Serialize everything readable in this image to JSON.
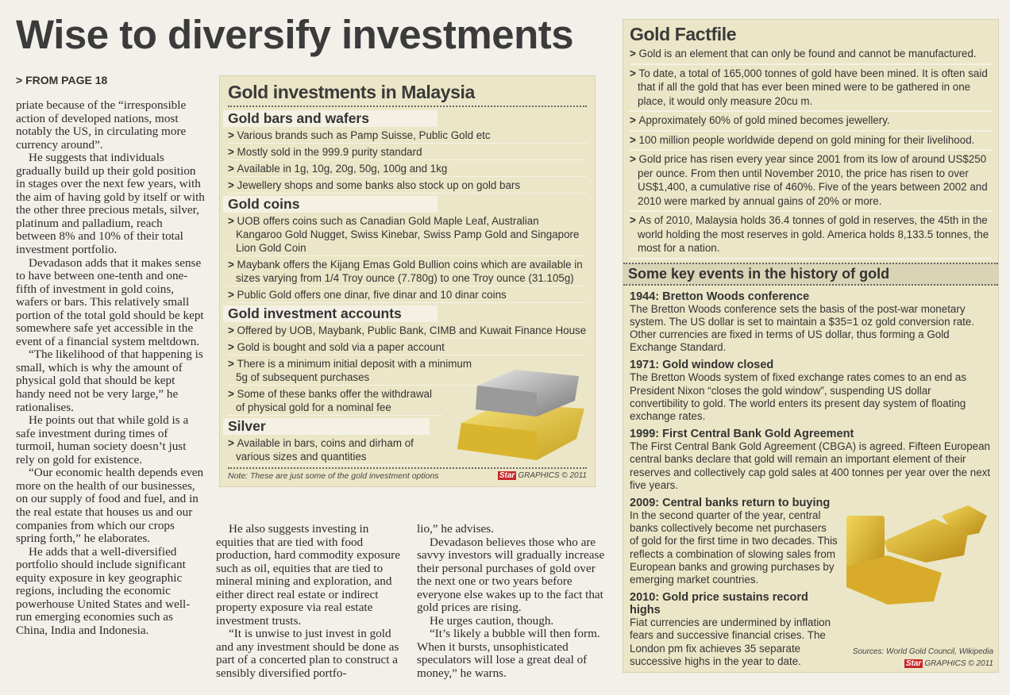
{
  "headline": "Wise to diversify investments",
  "jump": "> FROM PAGE 18",
  "article": {
    "left": [
      "priate because of the “irresponsible action of developed nations, most notably the US, in circulating more currency around”.",
      "He suggests that individuals gradually build up their gold position in stages over the next few years, with the aim of having gold by itself or with the other three precious metals, silver, platinum and palladium, reach between 8% and 10% of their total investment portfolio.",
      "Devadason adds that it makes sense to have between one-tenth and one-fifth of investment in gold coins, wafers or bars. This relatively small portion of the total gold should be kept somewhere safe yet accessible in the event of a financial system meltdown.",
      "“The likelihood of that happening is small, which is why the amount of physical gold that should be kept handy need not be very large,” he rationalises.",
      "He points out that while gold is a safe investment during times of turmoil, human society doesn’t just rely on gold for existence.",
      "“Our economic health depends even more on the health of our businesses, on our supply of food and fuel, and in the real estate that houses us and our companies from which our crops spring forth,” he elaborates.",
      "He adds that a well-diversified portfolio should include significant equity exposure in key geographic regions, including the economic powerhouse United States and well-run emerging economies such as China, India and Indonesia."
    ],
    "middle": [
      "He also suggests investing in equities that are tied with food production, hard commodity exposure such as oil, equities that are tied to mineral mining and exploration, and either direct real estate or indirect property exposure via real estate investment trusts.",
      "“It is unwise to just invest in gold and any investment should be done as part of a concerted plan to construct a sensibly diversified portfo-"
    ],
    "right": [
      "lio,” he advises.",
      "Devadason believes those who are savvy investors will gradually increase their personal purchases of gold over the next one or two years before everyone else wakes up to the fact that gold prices are rising.",
      "He urges caution, though.",
      "“It’s likely a bubble will then form. When it bursts, unsophisticated speculators will lose a great deal of money,” he warns."
    ]
  },
  "malaysia_box": {
    "title": "Gold investments in Malaysia",
    "sections": [
      {
        "heading": "Gold bars and wafers",
        "items": [
          "Various brands such as Pamp Suisse, Public Gold etc",
          "Mostly sold in the 999.9 purity standard",
          "Available in 1g, 10g, 20g, 50g, 100g and 1kg",
          "Jewellery shops and some banks also stock up on gold bars"
        ]
      },
      {
        "heading": "Gold coins",
        "items": [
          "UOB offers coins such as Canadian Gold Maple Leaf, Australian Kangaroo Gold Nugget, Swiss Kinebar, Swiss Pamp Gold and Singapore Lion Gold Coin",
          "Maybank offers the Kijang Emas Gold Bullion coins which are available in sizes varying from 1/4 Troy ounce (7.780g) to one Troy ounce (31.105g)",
          "Public Gold offers one dinar, five dinar and 10 dinar coins"
        ]
      },
      {
        "heading": "Gold investment accounts",
        "items": [
          "Offered by UOB, Maybank, Public Bank, CIMB and Kuwait Finance House",
          "Gold is bought and sold via a paper account",
          "There is a minimum initial deposit with a minimum 5g of subsequent purchases",
          "Some of these banks offer the withdrawal of physical gold for a nominal fee"
        ]
      },
      {
        "heading": "Silver",
        "items": [
          "Available in bars, coins and dirham of various sizes and quantities"
        ]
      }
    ],
    "note": "Note: These are just some of the gold investment options",
    "logo": "Star",
    "credit": "GRAPHICS © 2011"
  },
  "factfile": {
    "title": "Gold Factfile",
    "items": [
      "Gold is an element that can only be found and cannot be manufactured.",
      "To date, a total of 165,000 tonnes of gold have been mined. It is often said that if all the gold that has ever been mined were to be gathered in one place, it would only measure 20cu m.",
      "Approximately 60% of gold mined becomes jewellery.",
      "100 million people worldwide depend on gold mining for their livelihood.",
      "Gold price has risen every year since 2001 from its low of around US$250 per ounce. From then until November 2010, the price has risen to over US$1,400, a cumulative rise of 460%. Five of the years between 2002 and 2010 were marked by annual gains of 20% or more.",
      "As of 2010, Malaysia holds 36.4 tonnes of gold in reserves, the 45th in the world holding the most reserves in gold. America holds 8,133.5 tonnes, the most for a nation."
    ],
    "events_title": "Some key events in the history of gold",
    "events": [
      {
        "heading": "1944: Bretton Woods conference",
        "text": "The Bretton Woods conference sets the basis of the post-war monetary system. The US dollar is set to maintain a $35=1 oz gold conversion rate. Other currencies are fixed in terms of US dollar, thus forming a Gold Exchange Standard."
      },
      {
        "heading": "1971: Gold window closed",
        "text": "The Bretton Woods system of fixed exchange rates comes to an end as President Nixon “closes the gold window”, suspending US dollar convertibility to gold. The world enters its present day system of floating exchange rates."
      },
      {
        "heading": "1999: First Central Bank Gold Agreement",
        "text": "The First Central Bank Gold Agreement (CBGA) is agreed. Fifteen European central banks declare that gold will remain an important element of their reserves and collectively cap gold sales at 400 tonnes per year over the next five years."
      },
      {
        "heading": "2009: Central banks return to buying",
        "text": "In the second quarter of the year, central banks collectively become net purchasers of gold for the first time in two decades. This reflects a combination of slowing sales from European banks and growing purchases by emerging market countries."
      },
      {
        "heading": "2010: Gold price sustains record highs",
        "text": "Fiat currencies are undermined by inflation fears and successive financial crises. The London pm fix achieves 35 separate successive highs in the year to date."
      }
    ],
    "sources": "Sources: World Gold Council, Wikipedia",
    "logo": "Star",
    "credit": "GRAPHICS © 2011"
  }
}
